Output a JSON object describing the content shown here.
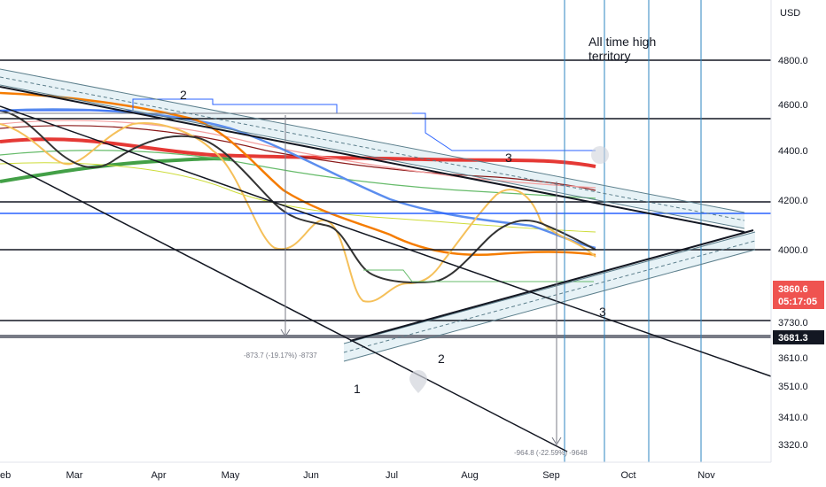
{
  "chart_data": {
    "type": "line",
    "currency": "USD",
    "y_ticks": [
      "4800.0",
      "4600.0",
      "4400.0",
      "4200.0",
      "4000.0",
      "3730.0",
      "3610.0",
      "3510.0",
      "3410.0",
      "3320.0"
    ],
    "x_ticks": [
      "eb",
      "Mar",
      "Apr",
      "May",
      "Jun",
      "Jul",
      "Aug",
      "Sep",
      "Oct",
      "Nov"
    ],
    "price_label": "3860.6",
    "countdown_label": "05:17:05",
    "level_label": "3681.3",
    "annotation": "All time high territory",
    "wave_labels": [
      "2",
      "3",
      "3",
      "2",
      "1"
    ],
    "measure_labels": [
      "-873.7 (-19.17%) -8737",
      "-964.8 (-22.59%) -9648"
    ],
    "colors": {
      "price_badge": "#ef5350",
      "level_badge": "#131722",
      "vertical_lines": "#2e86c1",
      "blue_hline": "#2962ff"
    }
  }
}
